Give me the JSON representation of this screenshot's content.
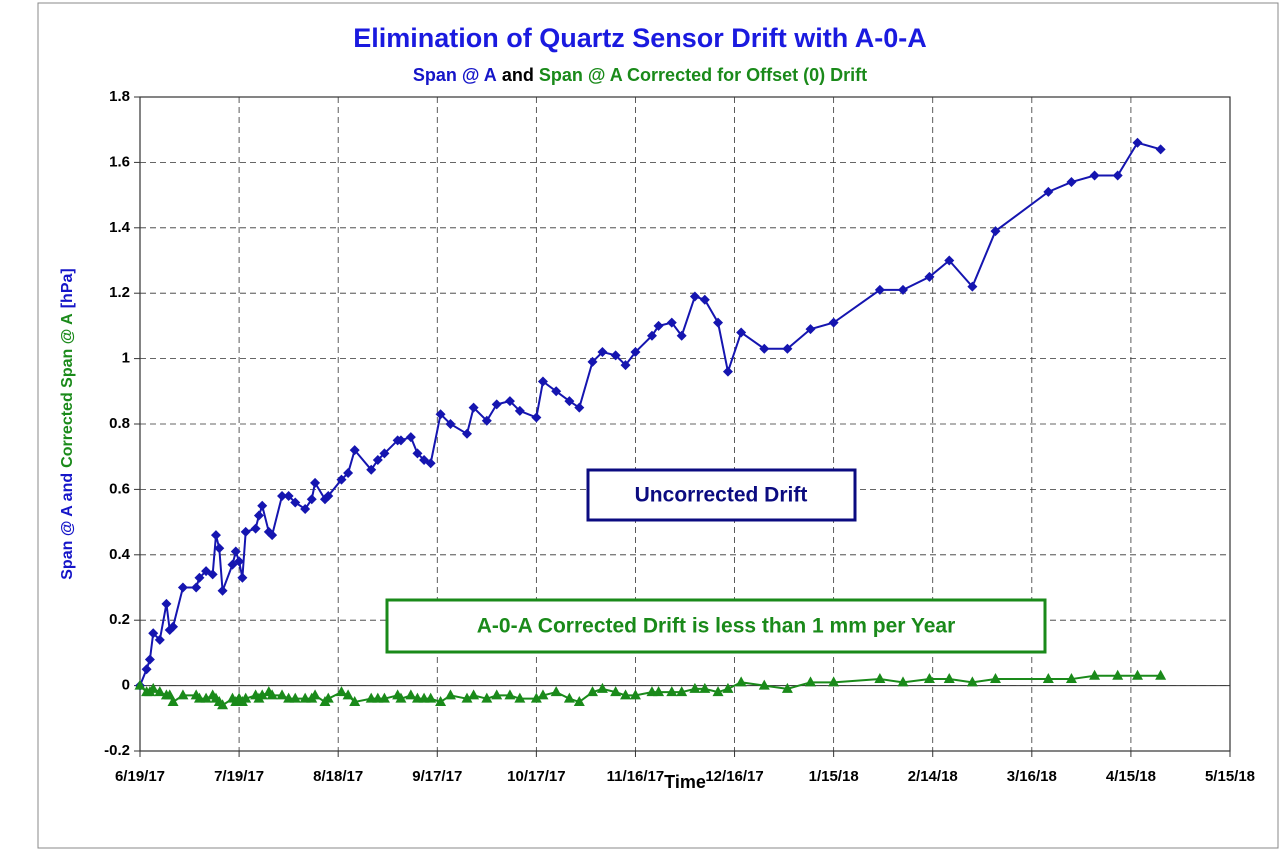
{
  "chart_data": {
    "type": "line",
    "title": "Elimination of Quartz Sensor Drift with A-0-A",
    "subtitle_parts": [
      {
        "text": "Span @ A",
        "color": "#1515c8"
      },
      {
        "text": "and",
        "color": "#000000"
      },
      {
        "text": "Span @ A Corrected for Offset (0) Drift",
        "color": "#1a8a1a"
      }
    ],
    "ylabel_parts": [
      {
        "text": "Span @ A and",
        "color": "#1515c8"
      },
      {
        "text": "Corrected Span @ A",
        "color": "#1a8a1a"
      },
      {
        "text": "[hPa]",
        "color": "#1515c8"
      }
    ],
    "xlabel": "Time",
    "x": [
      "6/19/17",
      "6/21/17",
      "6/22/17",
      "6/23/17",
      "6/25/17",
      "6/27/17",
      "6/28/17",
      "6/29/17",
      "7/2/17",
      "7/6/17",
      "7/7/17",
      "7/9/17",
      "7/11/17",
      "7/12/17",
      "7/13/17",
      "7/14/17",
      "7/17/17",
      "7/18/17",
      "7/19/17",
      "7/20/17",
      "7/21/17",
      "7/24/17",
      "7/25/17",
      "7/26/17",
      "7/28/17",
      "7/29/17",
      "8/1/17",
      "8/3/17",
      "8/5/17",
      "8/8/17",
      "8/10/17",
      "8/11/17",
      "8/14/17",
      "8/15/17",
      "8/19/17",
      "8/21/17",
      "8/23/17",
      "8/28/17",
      "8/30/17",
      "9/1/17",
      "9/5/17",
      "9/6/17",
      "9/9/17",
      "9/11/17",
      "9/13/17",
      "9/15/17",
      "9/18/17",
      "9/21/17",
      "9/26/17",
      "9/28/17",
      "10/2/17",
      "10/5/17",
      "10/9/17",
      "10/12/17",
      "10/17/17",
      "10/19/17",
      "10/23/17",
      "10/27/17",
      "10/30/17",
      "11/3/17",
      "11/6/17",
      "11/10/17",
      "11/13/17",
      "11/16/17",
      "11/21/17",
      "11/23/17",
      "11/27/17",
      "11/30/17",
      "12/4/17",
      "12/7/17",
      "12/11/17",
      "12/14/17",
      "12/18/17",
      "12/25/17",
      "1/1/18",
      "1/8/18",
      "1/15/18",
      "1/29/18",
      "2/5/18",
      "2/13/18",
      "2/19/18",
      "2/26/18",
      "3/5/18",
      "3/21/18",
      "3/28/18",
      "4/4/18",
      "4/11/18",
      "4/17/18",
      "4/24/18"
    ],
    "series": [
      {
        "color": "#1515b0",
        "marker": "diamond",
        "values": [
          0,
          0.05,
          0.08,
          0.16,
          0.14,
          0.25,
          0.17,
          0.18,
          0.3,
          0.3,
          0.33,
          0.35,
          0.34,
          0.46,
          0.42,
          0.29,
          0.37,
          0.41,
          0.38,
          0.33,
          0.47,
          0.48,
          0.52,
          0.55,
          0.47,
          0.46,
          0.58,
          0.58,
          0.56,
          0.54,
          0.57,
          0.62,
          0.57,
          0.58,
          0.63,
          0.65,
          0.72,
          0.66,
          0.69,
          0.71,
          0.75,
          0.75,
          0.76,
          0.71,
          0.69,
          0.68,
          0.83,
          0.8,
          0.77,
          0.85,
          0.81,
          0.86,
          0.87,
          0.84,
          0.82,
          0.93,
          0.9,
          0.87,
          0.85,
          0.99,
          1.02,
          1.01,
          0.98,
          1.02,
          1.07,
          1.1,
          1.11,
          1.07,
          1.19,
          1.18,
          1.11,
          0.96,
          1.08,
          1.03,
          1.03,
          1.09,
          1.11,
          1.21,
          1.21,
          1.25,
          1.3,
          1.22,
          1.39,
          1.51,
          1.54,
          1.56,
          1.56,
          1.66,
          1.64
        ]
      },
      {
        "color": "#1a8a1a",
        "marker": "triangle",
        "values": [
          0,
          -0.02,
          -0.02,
          -0.01,
          -0.02,
          -0.03,
          -0.03,
          -0.05,
          -0.03,
          -0.03,
          -0.04,
          -0.04,
          -0.03,
          -0.04,
          -0.05,
          -0.06,
          -0.04,
          -0.05,
          -0.04,
          -0.05,
          -0.04,
          -0.03,
          -0.04,
          -0.03,
          -0.02,
          -0.03,
          -0.03,
          -0.04,
          -0.04,
          -0.04,
          -0.04,
          -0.03,
          -0.05,
          -0.04,
          -0.02,
          -0.03,
          -0.05,
          -0.04,
          -0.04,
          -0.04,
          -0.03,
          -0.04,
          -0.03,
          -0.04,
          -0.04,
          -0.04,
          -0.05,
          -0.03,
          -0.04,
          -0.03,
          -0.04,
          -0.03,
          -0.03,
          -0.04,
          -0.04,
          -0.03,
          -0.02,
          -0.04,
          -0.05,
          -0.02,
          -0.01,
          -0.02,
          -0.03,
          -0.03,
          -0.02,
          -0.02,
          -0.02,
          -0.02,
          -0.01,
          -0.01,
          -0.02,
          -0.01,
          0.01,
          0,
          -0.01,
          0.01,
          0.01,
          0.02,
          0.01,
          0.02,
          0.02,
          0.01,
          0.02,
          0.02,
          0.02,
          0.03,
          0.03,
          0.03,
          0.03
        ]
      }
    ],
    "xlim": [
      "6/19/17",
      "5/15/18"
    ],
    "xticks": [
      "6/19/17",
      "7/19/17",
      "8/18/17",
      "9/17/17",
      "10/17/17",
      "11/16/17",
      "12/16/17",
      "1/15/18",
      "2/14/18",
      "3/16/18",
      "4/15/18",
      "5/15/18"
    ],
    "ylim": [
      -0.2,
      1.8
    ],
    "yticks": [
      -0.2,
      0,
      0.2,
      0.4,
      0.6,
      0.8,
      1,
      1.2,
      1.4,
      1.6,
      1.8
    ],
    "grid": true,
    "annotations": [
      {
        "text": "Uncorrected Drift",
        "color": "#0b0b80"
      },
      {
        "text": "A-0-A Corrected Drift is less than 1 mm per Year",
        "color": "#1a8a1a"
      }
    ]
  }
}
